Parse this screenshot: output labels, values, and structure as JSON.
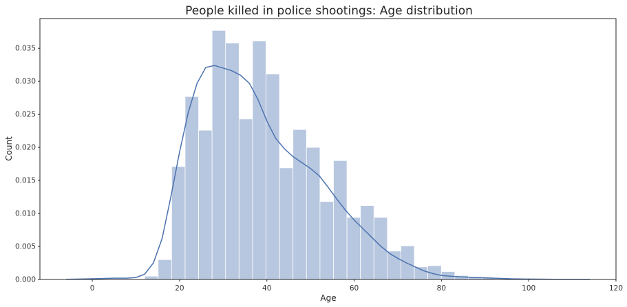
{
  "chart_data": {
    "type": "bar",
    "title": "People killed in police shootings: Age distribution",
    "xlabel": "Age",
    "ylabel": "Count",
    "xlim": [
      -12,
      120
    ],
    "ylim": [
      0,
      0.0395
    ],
    "grid": false,
    "xticks": [
      0,
      20,
      40,
      60,
      80,
      100,
      120
    ],
    "yticks": [
      0.0,
      0.005,
      0.01,
      0.015,
      0.02,
      0.025,
      0.03,
      0.035
    ],
    "ytick_labels": [
      "0.000",
      "0.005",
      "0.010",
      "0.015",
      "0.020",
      "0.025",
      "0.030",
      "0.035"
    ],
    "bin_width": 3.09,
    "bins": [
      {
        "x_start": 12.0,
        "value": 0.0005
      },
      {
        "x_start": 15.09,
        "value": 0.003
      },
      {
        "x_start": 18.18,
        "value": 0.0171
      },
      {
        "x_start": 21.27,
        "value": 0.0277
      },
      {
        "x_start": 24.36,
        "value": 0.0226
      },
      {
        "x_start": 27.45,
        "value": 0.0377
      },
      {
        "x_start": 30.54,
        "value": 0.0358
      },
      {
        "x_start": 33.63,
        "value": 0.0243
      },
      {
        "x_start": 36.72,
        "value": 0.0361
      },
      {
        "x_start": 39.81,
        "value": 0.0311
      },
      {
        "x_start": 42.9,
        "value": 0.0169
      },
      {
        "x_start": 45.99,
        "value": 0.0227
      },
      {
        "x_start": 49.08,
        "value": 0.02
      },
      {
        "x_start": 52.17,
        "value": 0.0118
      },
      {
        "x_start": 55.26,
        "value": 0.018
      },
      {
        "x_start": 58.35,
        "value": 0.0094
      },
      {
        "x_start": 61.44,
        "value": 0.0112
      },
      {
        "x_start": 64.53,
        "value": 0.0094
      },
      {
        "x_start": 67.62,
        "value": 0.0043
      },
      {
        "x_start": 70.71,
        "value": 0.0051
      },
      {
        "x_start": 73.8,
        "value": 0.0019
      },
      {
        "x_start": 76.89,
        "value": 0.0021
      },
      {
        "x_start": 79.98,
        "value": 0.0012
      },
      {
        "x_start": 83.07,
        "value": 0.0006
      },
      {
        "x_start": 86.16,
        "value": 0.0004
      },
      {
        "x_start": 89.25,
        "value": 0.0003
      },
      {
        "x_start": 92.34,
        "value": 0.0001
      }
    ],
    "kde": {
      "x": [
        -6,
        0,
        5,
        8,
        10,
        12,
        14,
        16,
        18,
        20,
        22,
        24,
        26,
        28,
        30,
        32,
        34,
        36,
        38,
        40,
        42,
        44,
        46,
        48,
        50,
        52,
        54,
        56,
        58,
        60,
        62,
        64,
        66,
        68,
        70,
        72,
        74,
        76,
        78,
        80,
        82,
        84,
        88,
        92,
        96,
        100,
        106,
        114
      ],
      "y": [
        3e-05,
        0.0001,
        0.0002,
        0.0002,
        0.0003,
        0.0008,
        0.0025,
        0.0062,
        0.0125,
        0.0193,
        0.0253,
        0.0297,
        0.0321,
        0.0324,
        0.032,
        0.0316,
        0.0309,
        0.0297,
        0.0272,
        0.024,
        0.0214,
        0.0198,
        0.0186,
        0.0177,
        0.0168,
        0.0157,
        0.014,
        0.0122,
        0.0105,
        0.009,
        0.0077,
        0.0064,
        0.0051,
        0.004,
        0.0032,
        0.0025,
        0.0019,
        0.0013,
        0.0009,
        0.0006,
        0.0005,
        0.0004,
        0.0003,
        0.0002,
        0.0001,
        6e-05,
        3e-05,
        1e-05
      ]
    },
    "colors": {
      "bar_fill": "#4c72b0",
      "bar_opacity": 0.4,
      "bar_edge": "#ffffff",
      "kde_line": "#4c72b0",
      "frame": "#262626"
    }
  }
}
